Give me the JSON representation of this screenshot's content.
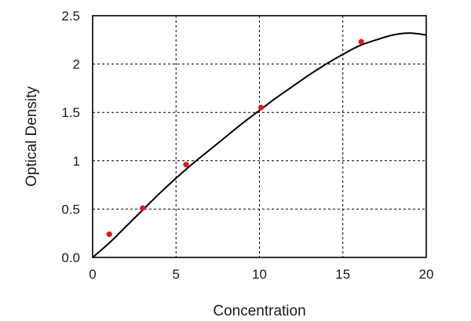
{
  "chart_data": {
    "type": "scatter",
    "xlabel": "Concentration",
    "ylabel": "Optical Density",
    "xlim": [
      0,
      20
    ],
    "ylim": [
      0,
      2.5
    ],
    "x_ticks": [
      0,
      5,
      10,
      15,
      20
    ],
    "x_tick_labels": [
      "0",
      "5",
      "10",
      "15",
      "20"
    ],
    "y_ticks": [
      0,
      0.5,
      1,
      1.5,
      2,
      2.5
    ],
    "y_tick_labels": [
      "0.0",
      "0.5",
      "1",
      "1.5",
      "2",
      "2.5"
    ],
    "grid": true,
    "legend": "none",
    "points": {
      "x": [
        1.0,
        3.0,
        5.6,
        10.1,
        16.1
      ],
      "y": [
        0.24,
        0.51,
        0.96,
        1.55,
        2.23
      ],
      "color": "#e8141c"
    },
    "fit_curve": {
      "color": "#000000",
      "x": [
        0,
        1,
        2,
        3,
        4,
        5,
        6,
        7,
        8,
        9,
        10,
        11,
        12,
        13,
        14,
        15,
        16,
        17,
        18,
        19,
        20
      ],
      "y": [
        0.0,
        0.15,
        0.32,
        0.49,
        0.66,
        0.82,
        0.97,
        1.11,
        1.25,
        1.39,
        1.52,
        1.65,
        1.77,
        1.89,
        2.0,
        2.1,
        2.19,
        2.25,
        2.3,
        2.32,
        2.3
      ]
    }
  }
}
